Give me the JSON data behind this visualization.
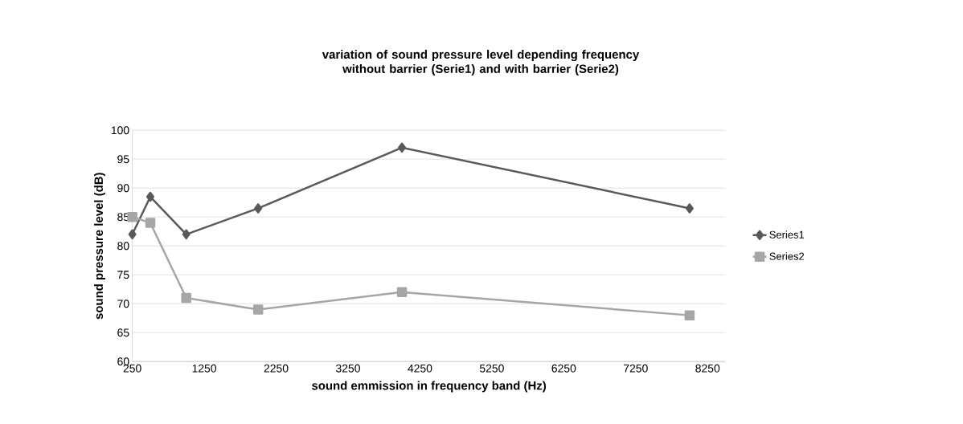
{
  "chart_data": {
    "type": "line",
    "title": "variation of sound pressure level depending frequency without barrier (Serie1) and with barrier (Serie2)",
    "xlabel": "sound emmission in frequency band (Hz)",
    "ylabel": "sound pressure level (dB)",
    "x": [
      250,
      500,
      1000,
      2000,
      4000,
      8000
    ],
    "series": [
      {
        "name": "Series1",
        "color": "#595959",
        "marker": "diamond",
        "values": [
          82,
          88.5,
          82,
          86.5,
          97,
          86.5
        ]
      },
      {
        "name": "Series2",
        "color": "#a6a6a6",
        "marker": "square",
        "values": [
          85,
          84,
          71,
          69,
          72,
          68
        ]
      }
    ],
    "xlim": [
      250,
      8500
    ],
    "xticks": [
      250,
      1250,
      2250,
      3250,
      4250,
      5250,
      6250,
      7250,
      8250
    ],
    "ylim": [
      60,
      100
    ],
    "yticks": [
      60,
      65,
      70,
      75,
      80,
      85,
      90,
      95,
      100
    ],
    "grid": "y",
    "legend": "right",
    "line_style": "solid"
  }
}
